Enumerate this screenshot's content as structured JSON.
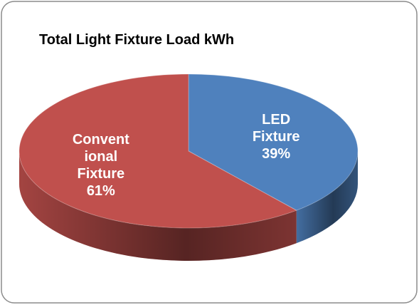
{
  "chart_data": {
    "type": "pie3d",
    "title": "Total Light Fixture Load kWh",
    "categories": [
      "LED Fixture",
      "Conventional Fixture"
    ],
    "values": [
      39,
      61
    ],
    "value_labels": [
      "39%",
      "61%"
    ],
    "colors": [
      "#4f81bd",
      "#c0504d"
    ]
  }
}
